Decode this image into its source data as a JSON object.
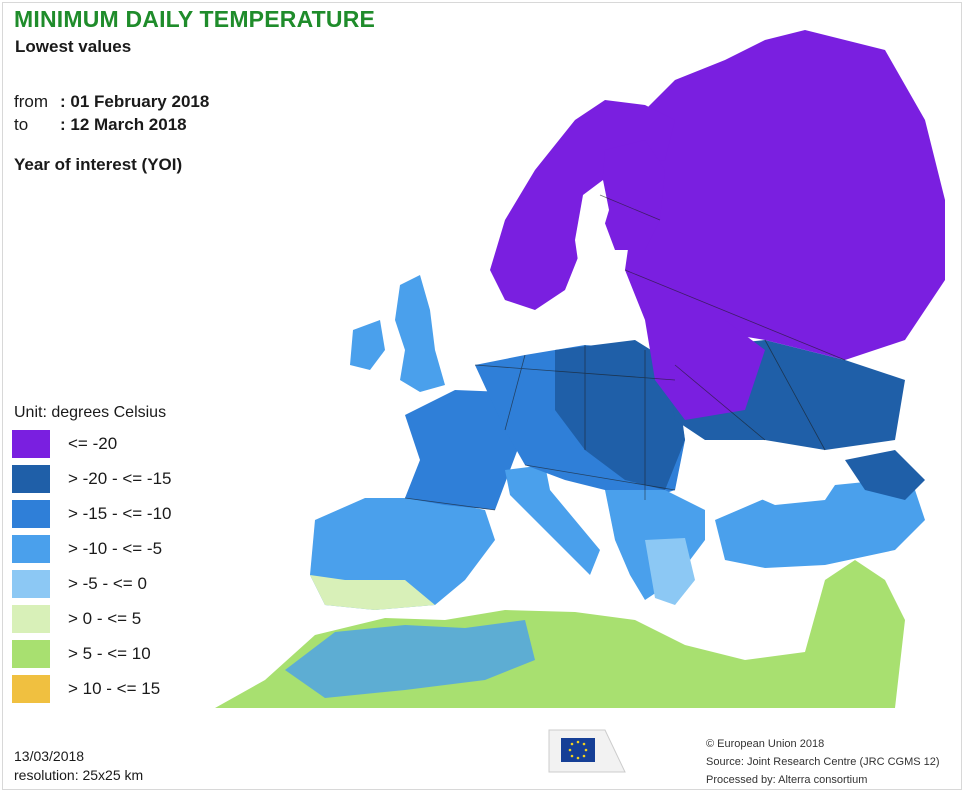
{
  "header": {
    "title": "MINIMUM DAILY TEMPERATURE",
    "subtitle": "Lowest values",
    "from_label": "from",
    "from_value": ": 01 February 2018",
    "to_label": "to",
    "to_value": ": 12 March 2018",
    "year_of_interest": "Year of interest (YOI)"
  },
  "legend": {
    "unit": "Unit: degrees Celsius",
    "items": [
      {
        "label": "<= -20",
        "color": "#7a1fe0"
      },
      {
        "label": "> -20 - <= -15",
        "color": "#1f5fa8"
      },
      {
        "label": "> -15 - <= -10",
        "color": "#2f7fd8"
      },
      {
        "label": "> -10 - <= -5",
        "color": "#4aa0ec"
      },
      {
        "label": "> -5 - <= 0",
        "color": "#8cc8f4"
      },
      {
        "label": "> 0 - <= 5",
        "color": "#d8f0b8"
      },
      {
        "label": "> 5 - <= 10",
        "color": "#a8e070"
      },
      {
        "label": "> 10 - <= 15",
        "color": "#f0c040"
      }
    ]
  },
  "footer": {
    "date": "13/03/2018",
    "resolution": "resolution:  25x25 km",
    "copyright": "© European Union 2018",
    "source": "Source: Joint Research Centre (JRC CGMS 12)",
    "processed": "Processed by: Alterra consortium"
  },
  "map": {
    "sea_color": "#ffffff",
    "border_color": "#1a1a1a",
    "logo_color": "#163f96"
  }
}
